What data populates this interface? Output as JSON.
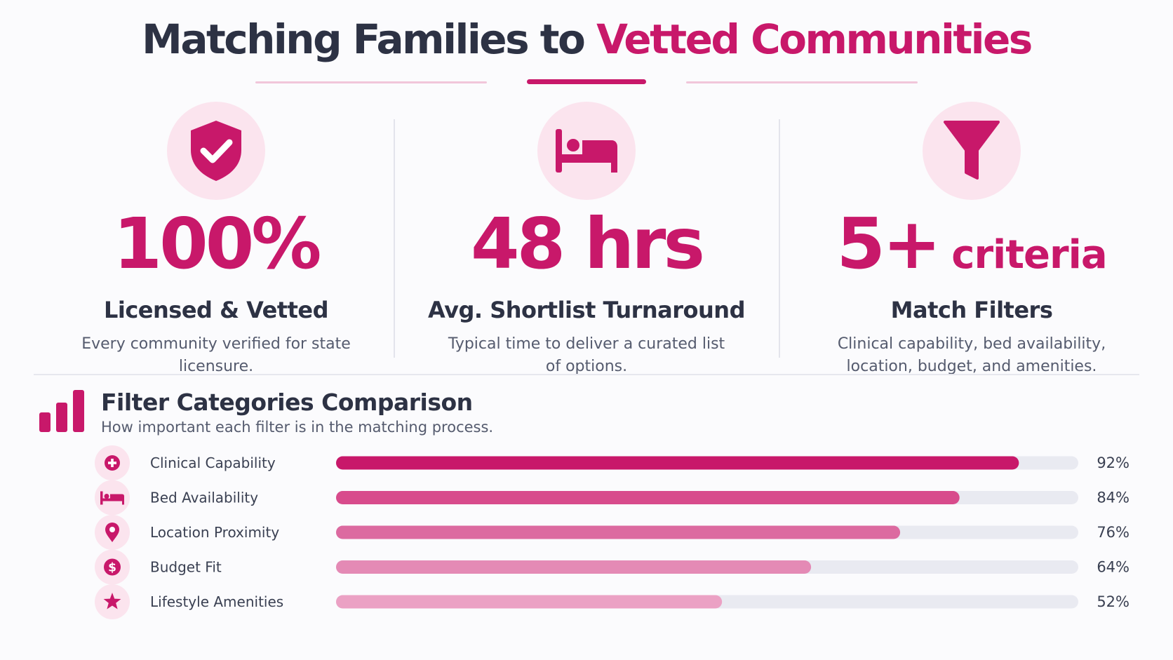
{
  "header": {
    "title_part1": "Matching Families to ",
    "title_part2": "Vetted Communities"
  },
  "colors": {
    "accent": "#c8186a",
    "dark_text": "#2d3244",
    "icon_bg": "#fbe4ee",
    "track": "#e9eaf1"
  },
  "stats": [
    {
      "icon": "shield-check-icon",
      "value": "100%",
      "suffix": "",
      "label": "Licensed & Vetted",
      "description": "Every community verified for state licensure."
    },
    {
      "icon": "bed-icon",
      "value": "48 hrs",
      "suffix": "",
      "label": "Avg. Shortlist Turnaround",
      "description": "Typical time to deliver a curated list of options."
    },
    {
      "icon": "funnel-icon",
      "value": "5+",
      "suffix": " criteria",
      "label": "Match Filters",
      "description": "Clinical capability, bed availability, location, budget, and amenities."
    }
  ],
  "section": {
    "icon": "bar-chart-icon",
    "title": "Filter Categories Comparison",
    "subtitle": "How important each filter is in the matching process."
  },
  "chart_data": {
    "type": "bar",
    "orientation": "horizontal",
    "title": "Filter Categories Comparison",
    "subtitle": "How important each filter is in the matching process.",
    "categories": [
      "Clinical Capability",
      "Bed Availability",
      "Location Proximity",
      "Budget Fit",
      "Lifestyle Amenities"
    ],
    "icons": [
      "medical-cross-icon",
      "bed-icon",
      "location-pin-icon",
      "dollar-icon",
      "star-icon"
    ],
    "values": [
      92,
      84,
      76,
      64,
      52
    ],
    "value_labels": [
      "92%",
      "84%",
      "76%",
      "64%",
      "52%"
    ],
    "bar_colors": [
      "#c8186a",
      "#d84b8c",
      "#dc6aa0",
      "#e48ab5",
      "#eba1c4"
    ],
    "xlim": [
      0,
      100
    ]
  }
}
